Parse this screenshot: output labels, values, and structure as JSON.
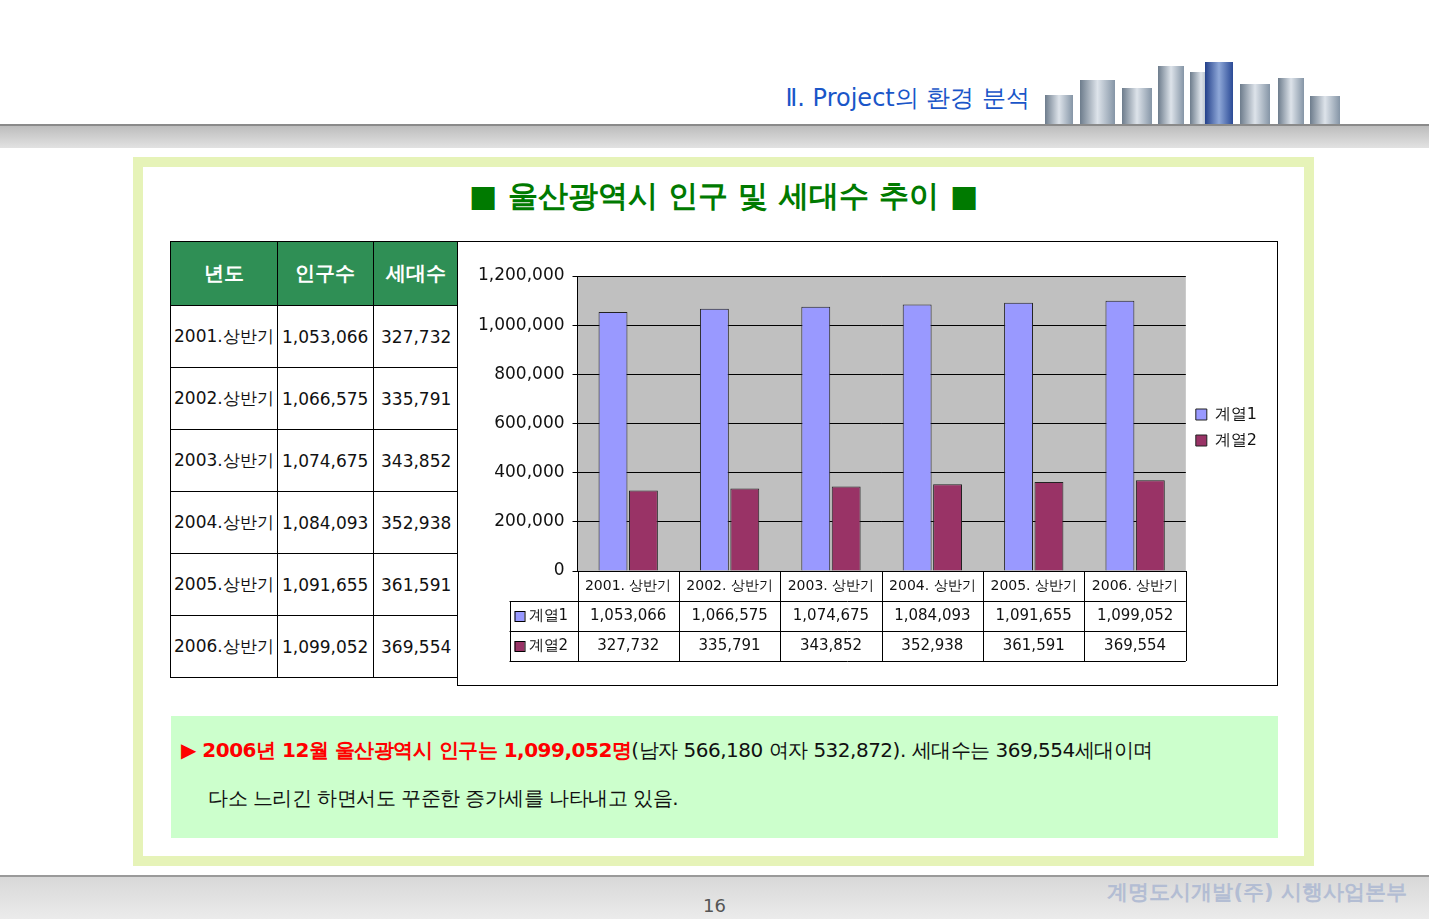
{
  "header": "Ⅱ. Project의 환경 분석",
  "title": "■ 울산광역시 인구 및 세대수 추이 ■",
  "table": {
    "columns": [
      "년도",
      "인구수",
      "세대수"
    ],
    "rows": [
      [
        "2001.상반기",
        "1,053,066",
        "327,732"
      ],
      [
        "2002.상반기",
        "1,066,575",
        "335,791"
      ],
      [
        "2003.상반기",
        "1,074,675",
        "343,852"
      ],
      [
        "2004.상반기",
        "1,084,093",
        "352,938"
      ],
      [
        "2005.상반기",
        "1,091,655",
        "361,591"
      ],
      [
        "2006.상반기",
        "1,099,052",
        "369,554"
      ]
    ]
  },
  "chart_data": {
    "type": "bar",
    "categories": [
      "2001. 상반기",
      "2002. 상반기",
      "2003. 상반기",
      "2004. 상반기",
      "2005. 상반기",
      "2006. 상반기"
    ],
    "series": [
      {
        "name": "계열1",
        "color": "#9999ff",
        "values": [
          1053066,
          1066575,
          1074675,
          1084093,
          1091655,
          1099052
        ],
        "value_labels": [
          "1,053,066",
          "1,066,575",
          "1,074,675",
          "1,084,093",
          "1,091,655",
          "1,099,052"
        ]
      },
      {
        "name": "계열2",
        "color": "#993366",
        "values": [
          327732,
          335791,
          343852,
          352938,
          361591,
          369554
        ],
        "value_labels": [
          "327,732",
          "335,791",
          "343,852",
          "352,938",
          "361,591",
          "369,554"
        ]
      }
    ],
    "ylim": [
      0,
      1200000
    ],
    "yticks": [
      0,
      {
        "value": 200000,
        "label": "200,000"
      },
      {
        "value": 400000,
        "label": "400,000"
      },
      {
        "value": 600000,
        "label": "600,000"
      },
      {
        "value": 800000,
        "label": "800,000"
      },
      {
        "value": 1000000,
        "label": "1,000,000"
      },
      {
        "value": 1200000,
        "label": "1,200,000"
      }
    ],
    "grid": true,
    "legend": "right"
  },
  "note": {
    "highlight": "▶ 2006년 12월 울산광역시 인구는 1,099,052명",
    "lines": [
      "(남자 566,180 여자 532,872). 세대수는 369,554세대이며",
      "다소 느리긴 하면서도 꾸준한 증가세를 나타내고 있음."
    ]
  },
  "page_number": "16",
  "footer": "계명도시개발(주) 시행사업본부"
}
